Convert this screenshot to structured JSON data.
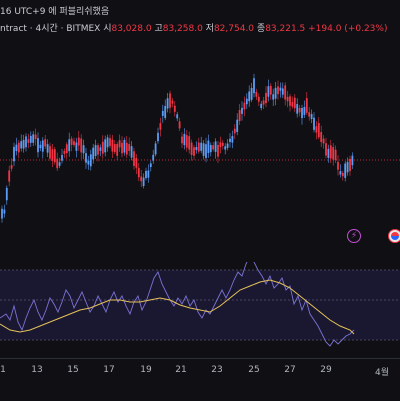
{
  "header": {
    "line1": "16 UTC+9 에 퍼블리쉬했음",
    "symbol": "ntract · 4시간 · BITMEX",
    "open_label": "시",
    "open_value": "83,028.0",
    "high_label": "고",
    "high_value": "83,258.0",
    "low_label": "저",
    "low_value": "82,754.0",
    "close_label": "종",
    "close_value": "83,221.5",
    "change": "+194.0 (+0.23%)"
  },
  "x_axis": {
    "ticks": [
      "1",
      "13",
      "15",
      "17",
      "19",
      "21",
      "23",
      "25",
      "27",
      "29",
      "4월"
    ]
  },
  "icons": {
    "event": "lightning-icon",
    "flag": "flag-icon"
  },
  "colors": {
    "up": "#5b9cf6",
    "down": "#f23645",
    "ma": "#e6c15a",
    "osc": "#7b73d6",
    "bg": "#101014"
  },
  "chart_data": {
    "type": "candlestick",
    "trend_points": [
      [
        0,
        220
      ],
      [
        4,
        212
      ],
      [
        8,
        185
      ],
      [
        12,
        162
      ],
      [
        16,
        150
      ],
      [
        20,
        148
      ],
      [
        25,
        145
      ],
      [
        30,
        140
      ],
      [
        36,
        138
      ],
      [
        40,
        148
      ],
      [
        45,
        142
      ],
      [
        50,
        150
      ],
      [
        55,
        158
      ],
      [
        60,
        166
      ],
      [
        64,
        152
      ],
      [
        68,
        148
      ],
      [
        72,
        142
      ],
      [
        76,
        148
      ],
      [
        80,
        142
      ],
      [
        84,
        150
      ],
      [
        88,
        160
      ],
      [
        92,
        158
      ],
      [
        96,
        152
      ],
      [
        100,
        150
      ],
      [
        105,
        148
      ],
      [
        110,
        142
      ],
      [
        115,
        150
      ],
      [
        120,
        145
      ],
      [
        125,
        147
      ],
      [
        130,
        150
      ],
      [
        134,
        158
      ],
      [
        138,
        170
      ],
      [
        142,
        182
      ],
      [
        146,
        176
      ],
      [
        150,
        168
      ],
      [
        154,
        155
      ],
      [
        158,
        140
      ],
      [
        162,
        118
      ],
      [
        166,
        110
      ],
      [
        170,
        100
      ],
      [
        174,
        106
      ],
      [
        178,
        120
      ],
      [
        182,
        138
      ],
      [
        186,
        142
      ],
      [
        190,
        146
      ],
      [
        194,
        150
      ],
      [
        198,
        148
      ],
      [
        202,
        145
      ],
      [
        206,
        150
      ],
      [
        210,
        148
      ],
      [
        214,
        147
      ],
      [
        218,
        150
      ],
      [
        222,
        146
      ],
      [
        226,
        152
      ],
      [
        230,
        140
      ],
      [
        234,
        135
      ],
      [
        238,
        120
      ],
      [
        242,
        112
      ],
      [
        246,
        104
      ],
      [
        250,
        96
      ],
      [
        254,
        88
      ],
      [
        258,
        100
      ],
      [
        262,
        106
      ],
      [
        266,
        96
      ],
      [
        270,
        92
      ],
      [
        274,
        96
      ],
      [
        278,
        88
      ],
      [
        282,
        94
      ],
      [
        286,
        95
      ],
      [
        290,
        100
      ],
      [
        294,
        104
      ],
      [
        298,
        110
      ],
      [
        302,
        116
      ],
      [
        306,
        106
      ],
      [
        310,
        116
      ],
      [
        314,
        122
      ],
      [
        318,
        130
      ],
      [
        322,
        140
      ],
      [
        326,
        148
      ],
      [
        330,
        154
      ],
      [
        334,
        150
      ],
      [
        338,
        166
      ],
      [
        342,
        174
      ],
      [
        346,
        168
      ],
      [
        350,
        165
      ],
      [
        354,
        160
      ]
    ],
    "price_line": 160,
    "oscillator_points": [
      [
        0,
        318
      ],
      [
        6,
        314
      ],
      [
        10,
        320
      ],
      [
        14,
        306
      ],
      [
        18,
        322
      ],
      [
        22,
        330
      ],
      [
        26,
        318
      ],
      [
        30,
        308
      ],
      [
        34,
        300
      ],
      [
        38,
        312
      ],
      [
        42,
        320
      ],
      [
        46,
        310
      ],
      [
        50,
        298
      ],
      [
        54,
        304
      ],
      [
        58,
        312
      ],
      [
        62,
        302
      ],
      [
        66,
        290
      ],
      [
        70,
        296
      ],
      [
        74,
        308
      ],
      [
        78,
        300
      ],
      [
        82,
        292
      ],
      [
        86,
        302
      ],
      [
        90,
        312
      ],
      [
        94,
        306
      ],
      [
        98,
        296
      ],
      [
        102,
        304
      ],
      [
        106,
        312
      ],
      [
        110,
        300
      ],
      [
        114,
        292
      ],
      [
        118,
        302
      ],
      [
        122,
        296
      ],
      [
        126,
        306
      ],
      [
        130,
        314
      ],
      [
        134,
        302
      ],
      [
        138,
        296
      ],
      [
        142,
        310
      ],
      [
        146,
        302
      ],
      [
        150,
        290
      ],
      [
        154,
        278
      ],
      [
        158,
        272
      ],
      [
        162,
        284
      ],
      [
        166,
        292
      ],
      [
        170,
        300
      ],
      [
        174,
        306
      ],
      [
        178,
        298
      ],
      [
        182,
        304
      ],
      [
        186,
        296
      ],
      [
        190,
        306
      ],
      [
        194,
        300
      ],
      [
        198,
        312
      ],
      [
        202,
        318
      ],
      [
        206,
        310
      ],
      [
        210,
        314
      ],
      [
        214,
        306
      ],
      [
        218,
        298
      ],
      [
        222,
        290
      ],
      [
        226,
        298
      ],
      [
        230,
        290
      ],
      [
        234,
        280
      ],
      [
        238,
        272
      ],
      [
        242,
        276
      ],
      [
        246,
        264
      ],
      [
        250,
        256
      ],
      [
        254,
        262
      ],
      [
        258,
        270
      ],
      [
        262,
        276
      ],
      [
        266,
        284
      ],
      [
        270,
        276
      ],
      [
        274,
        288
      ],
      [
        278,
        284
      ],
      [
        282,
        278
      ],
      [
        286,
        290
      ],
      [
        290,
        286
      ],
      [
        294,
        304
      ],
      [
        298,
        296
      ],
      [
        302,
        310
      ],
      [
        306,
        300
      ],
      [
        310,
        314
      ],
      [
        314,
        320
      ],
      [
        318,
        326
      ],
      [
        322,
        334
      ],
      [
        326,
        342
      ],
      [
        330,
        346
      ],
      [
        334,
        340
      ],
      [
        338,
        344
      ],
      [
        342,
        340
      ],
      [
        346,
        336
      ],
      [
        350,
        334
      ],
      [
        354,
        330
      ]
    ],
    "ma_points": [
      [
        0,
        324
      ],
      [
        10,
        330
      ],
      [
        20,
        332
      ],
      [
        30,
        330
      ],
      [
        40,
        326
      ],
      [
        50,
        322
      ],
      [
        60,
        318
      ],
      [
        70,
        314
      ],
      [
        80,
        310
      ],
      [
        90,
        308
      ],
      [
        100,
        304
      ],
      [
        110,
        300
      ],
      [
        120,
        300
      ],
      [
        130,
        302
      ],
      [
        140,
        302
      ],
      [
        150,
        300
      ],
      [
        160,
        298
      ],
      [
        170,
        300
      ],
      [
        180,
        305
      ],
      [
        190,
        308
      ],
      [
        200,
        310
      ],
      [
        210,
        312
      ],
      [
        220,
        306
      ],
      [
        230,
        298
      ],
      [
        240,
        290
      ],
      [
        250,
        286
      ],
      [
        260,
        282
      ],
      [
        270,
        280
      ],
      [
        280,
        283
      ],
      [
        290,
        288
      ],
      [
        300,
        296
      ],
      [
        310,
        304
      ],
      [
        320,
        312
      ],
      [
        330,
        320
      ],
      [
        340,
        326
      ],
      [
        350,
        330
      ],
      [
        354,
        334
      ]
    ],
    "indicator_levels": [
      270,
      300,
      340
    ]
  }
}
